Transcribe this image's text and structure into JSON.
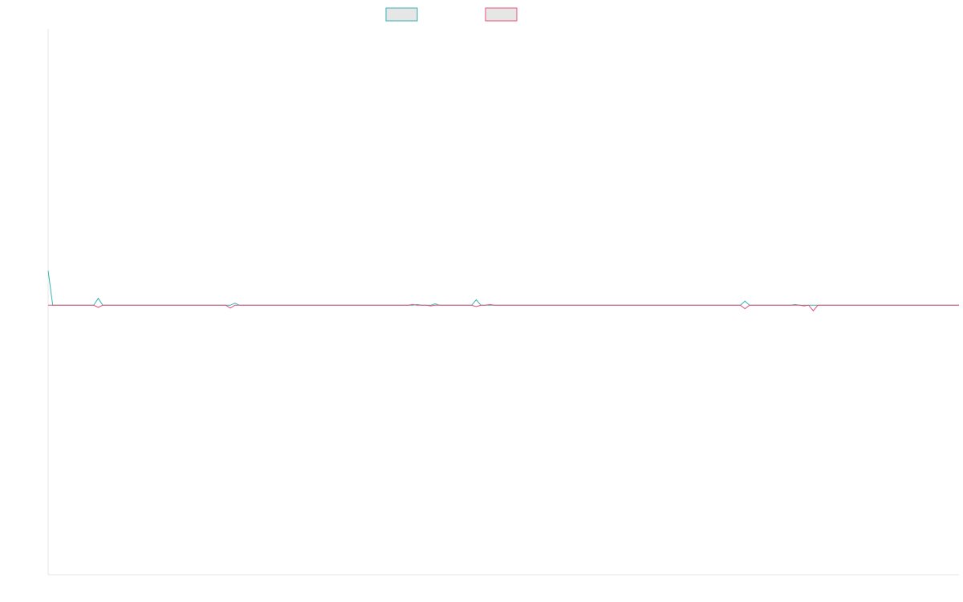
{
  "chart_data": {
    "type": "line",
    "title": "",
    "xlabel": "",
    "ylabel": "",
    "grid": false,
    "legend_position": "top-center",
    "x_count": 201,
    "ylim": [
      -3.9,
      4.0
    ],
    "series": [
      {
        "color": "#36b3b3",
        "legend_fill": "#e6e6e6",
        "points": [
          [
            0,
            0.5
          ],
          [
            1,
            0
          ],
          [
            10,
            0
          ],
          [
            11,
            0.1
          ],
          [
            12,
            0
          ],
          [
            40,
            0
          ],
          [
            41,
            0.03
          ],
          [
            42,
            0
          ],
          [
            52,
            0
          ],
          [
            80,
            0
          ],
          [
            81,
            0.01
          ],
          [
            82,
            0
          ],
          [
            84,
            0
          ],
          [
            85,
            0.02
          ],
          [
            86,
            0
          ],
          [
            93,
            0
          ],
          [
            94,
            0.08
          ],
          [
            95,
            0
          ],
          [
            152,
            0
          ],
          [
            153,
            0.06
          ],
          [
            154,
            0
          ],
          [
            163,
            0
          ],
          [
            164,
            0.01
          ],
          [
            165,
            0
          ],
          [
            167,
            0
          ],
          [
            168,
            0.18
          ],
          [
            169,
            0
          ],
          [
            168,
            0
          ],
          [
            169,
            0
          ],
          [
            170,
            0
          ],
          [
            171,
            0
          ],
          [
            172,
            0
          ],
          [
            173,
            0
          ],
          [
            174,
            0
          ],
          [
            175,
            0
          ],
          [
            176,
            0
          ],
          [
            177,
            0
          ],
          [
            178,
            0
          ],
          [
            179,
            0
          ],
          [
            180,
            0
          ],
          [
            181,
            0
          ],
          [
            182,
            0
          ],
          [
            183,
            0
          ],
          [
            184,
            0
          ],
          [
            185,
            0
          ],
          [
            186,
            0
          ],
          [
            187,
            0
          ],
          [
            188,
            0
          ],
          [
            189,
            0
          ],
          [
            190,
            0
          ],
          [
            191,
            0
          ],
          [
            192,
            0
          ],
          [
            193,
            0
          ],
          [
            194,
            0
          ],
          [
            195,
            0
          ],
          [
            196,
            0
          ],
          [
            197,
            0
          ],
          [
            198,
            0
          ],
          [
            199,
            0
          ],
          [
            200,
            0
          ]
        ]
      },
      {
        "color": "#e8507a",
        "legend_fill": "#e6e6e6",
        "points": [
          [
            0,
            0
          ],
          [
            10,
            0
          ],
          [
            11,
            -0.03
          ],
          [
            12,
            0
          ],
          [
            39,
            0
          ],
          [
            40,
            -0.04
          ],
          [
            41,
            0
          ],
          [
            79,
            0
          ],
          [
            80,
            0.01
          ],
          [
            81,
            0
          ],
          [
            83,
            0
          ],
          [
            84,
            -0.01
          ],
          [
            85,
            0
          ],
          [
            93,
            0
          ],
          [
            94,
            -0.02
          ],
          [
            95,
            0
          ],
          [
            96,
            0
          ],
          [
            97,
            0.01
          ],
          [
            98,
            0
          ],
          [
            152,
            0
          ],
          [
            153,
            -0.05
          ],
          [
            154,
            0
          ],
          [
            165,
            0
          ],
          [
            166,
            -0.01
          ],
          [
            167,
            0
          ],
          [
            168,
            -0.08
          ],
          [
            169,
            0
          ],
          [
            200,
            0
          ]
        ]
      }
    ]
  }
}
